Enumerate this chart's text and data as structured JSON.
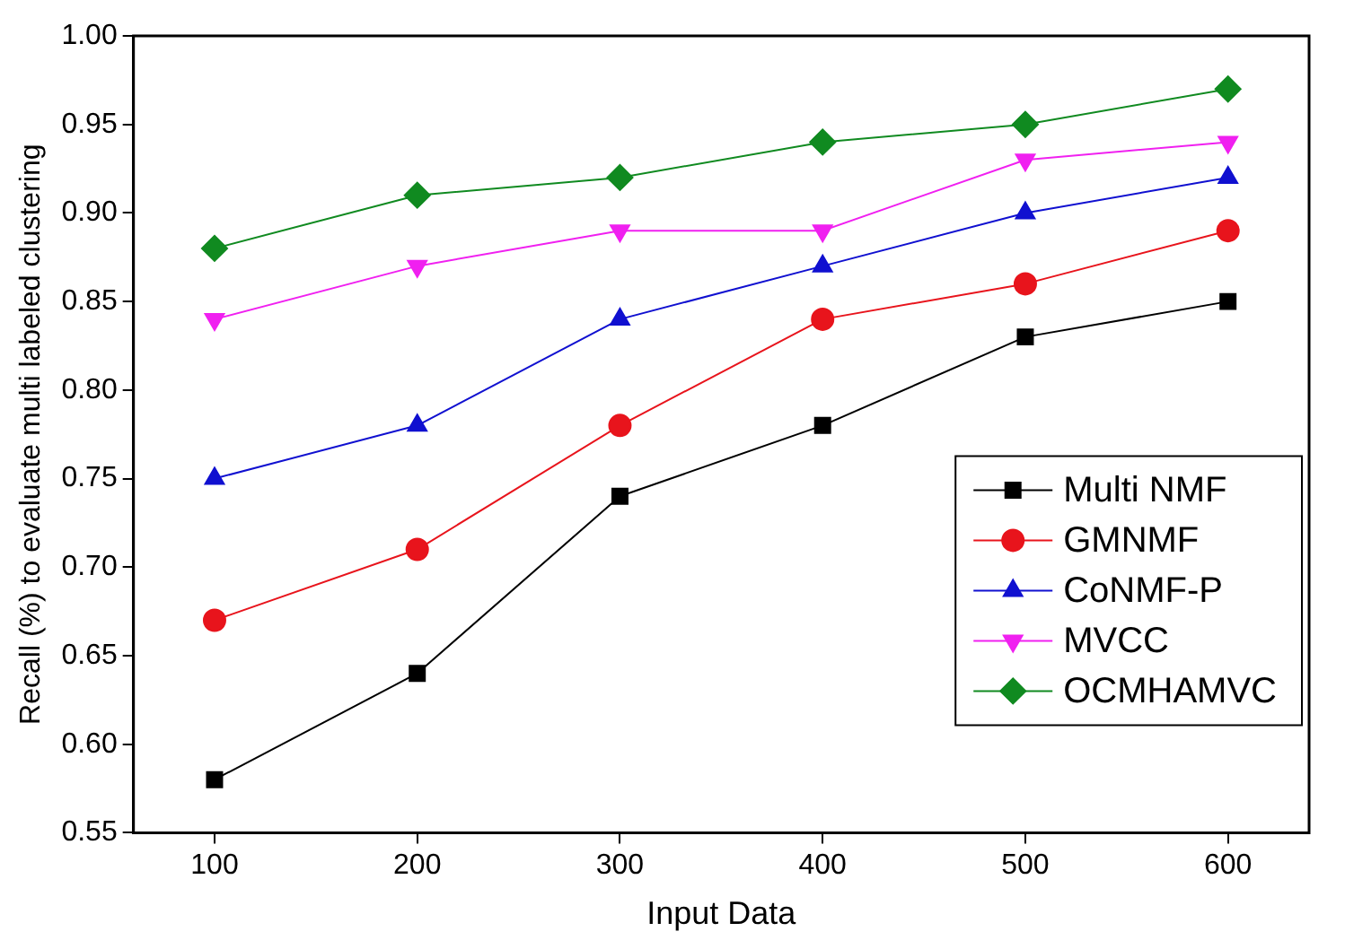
{
  "chart_data": {
    "type": "line",
    "xlabel": "Input Data",
    "ylabel": "Recall (%) to evaluate multi labeled clustering",
    "x": [
      100,
      200,
      300,
      400,
      500,
      600
    ],
    "series": [
      {
        "name": "Multi NMF",
        "color": "#000000",
        "marker": "square",
        "values": [
          0.58,
          0.64,
          0.74,
          0.78,
          0.83,
          0.85
        ]
      },
      {
        "name": "GMNMF",
        "color": "#e8141c",
        "marker": "circle",
        "values": [
          0.67,
          0.71,
          0.78,
          0.84,
          0.86,
          0.89
        ]
      },
      {
        "name": "CoNMF-P",
        "color": "#1010d0",
        "marker": "triangle",
        "values": [
          0.75,
          0.78,
          0.84,
          0.87,
          0.9,
          0.92
        ]
      },
      {
        "name": "MVCC",
        "color": "#f020f0",
        "marker": "triangle-down",
        "values": [
          0.84,
          0.87,
          0.89,
          0.89,
          0.93,
          0.94
        ]
      },
      {
        "name": "OCMHAMVC",
        "color": "#108a20",
        "marker": "diamond",
        "values": [
          0.88,
          0.91,
          0.92,
          0.94,
          0.95,
          0.97
        ]
      }
    ],
    "xlim": [
      60,
      640
    ],
    "xticks": [
      100,
      200,
      300,
      400,
      500,
      600
    ],
    "ylim": [
      0.55,
      1.0
    ],
    "yticks": [
      0.55,
      {
        "value": 0.6,
        "label": "0.60"
      },
      0.65,
      {
        "value": 0.7,
        "label": "0.70"
      },
      0.75,
      {
        "value": 0.8,
        "label": "0.80"
      },
      0.85,
      {
        "value": 0.9,
        "label": "0.90"
      },
      0.95,
      {
        "value": 1.0,
        "label": "1.00"
      }
    ],
    "grid": false,
    "legend": "bottom right",
    "line_style": "solid"
  }
}
